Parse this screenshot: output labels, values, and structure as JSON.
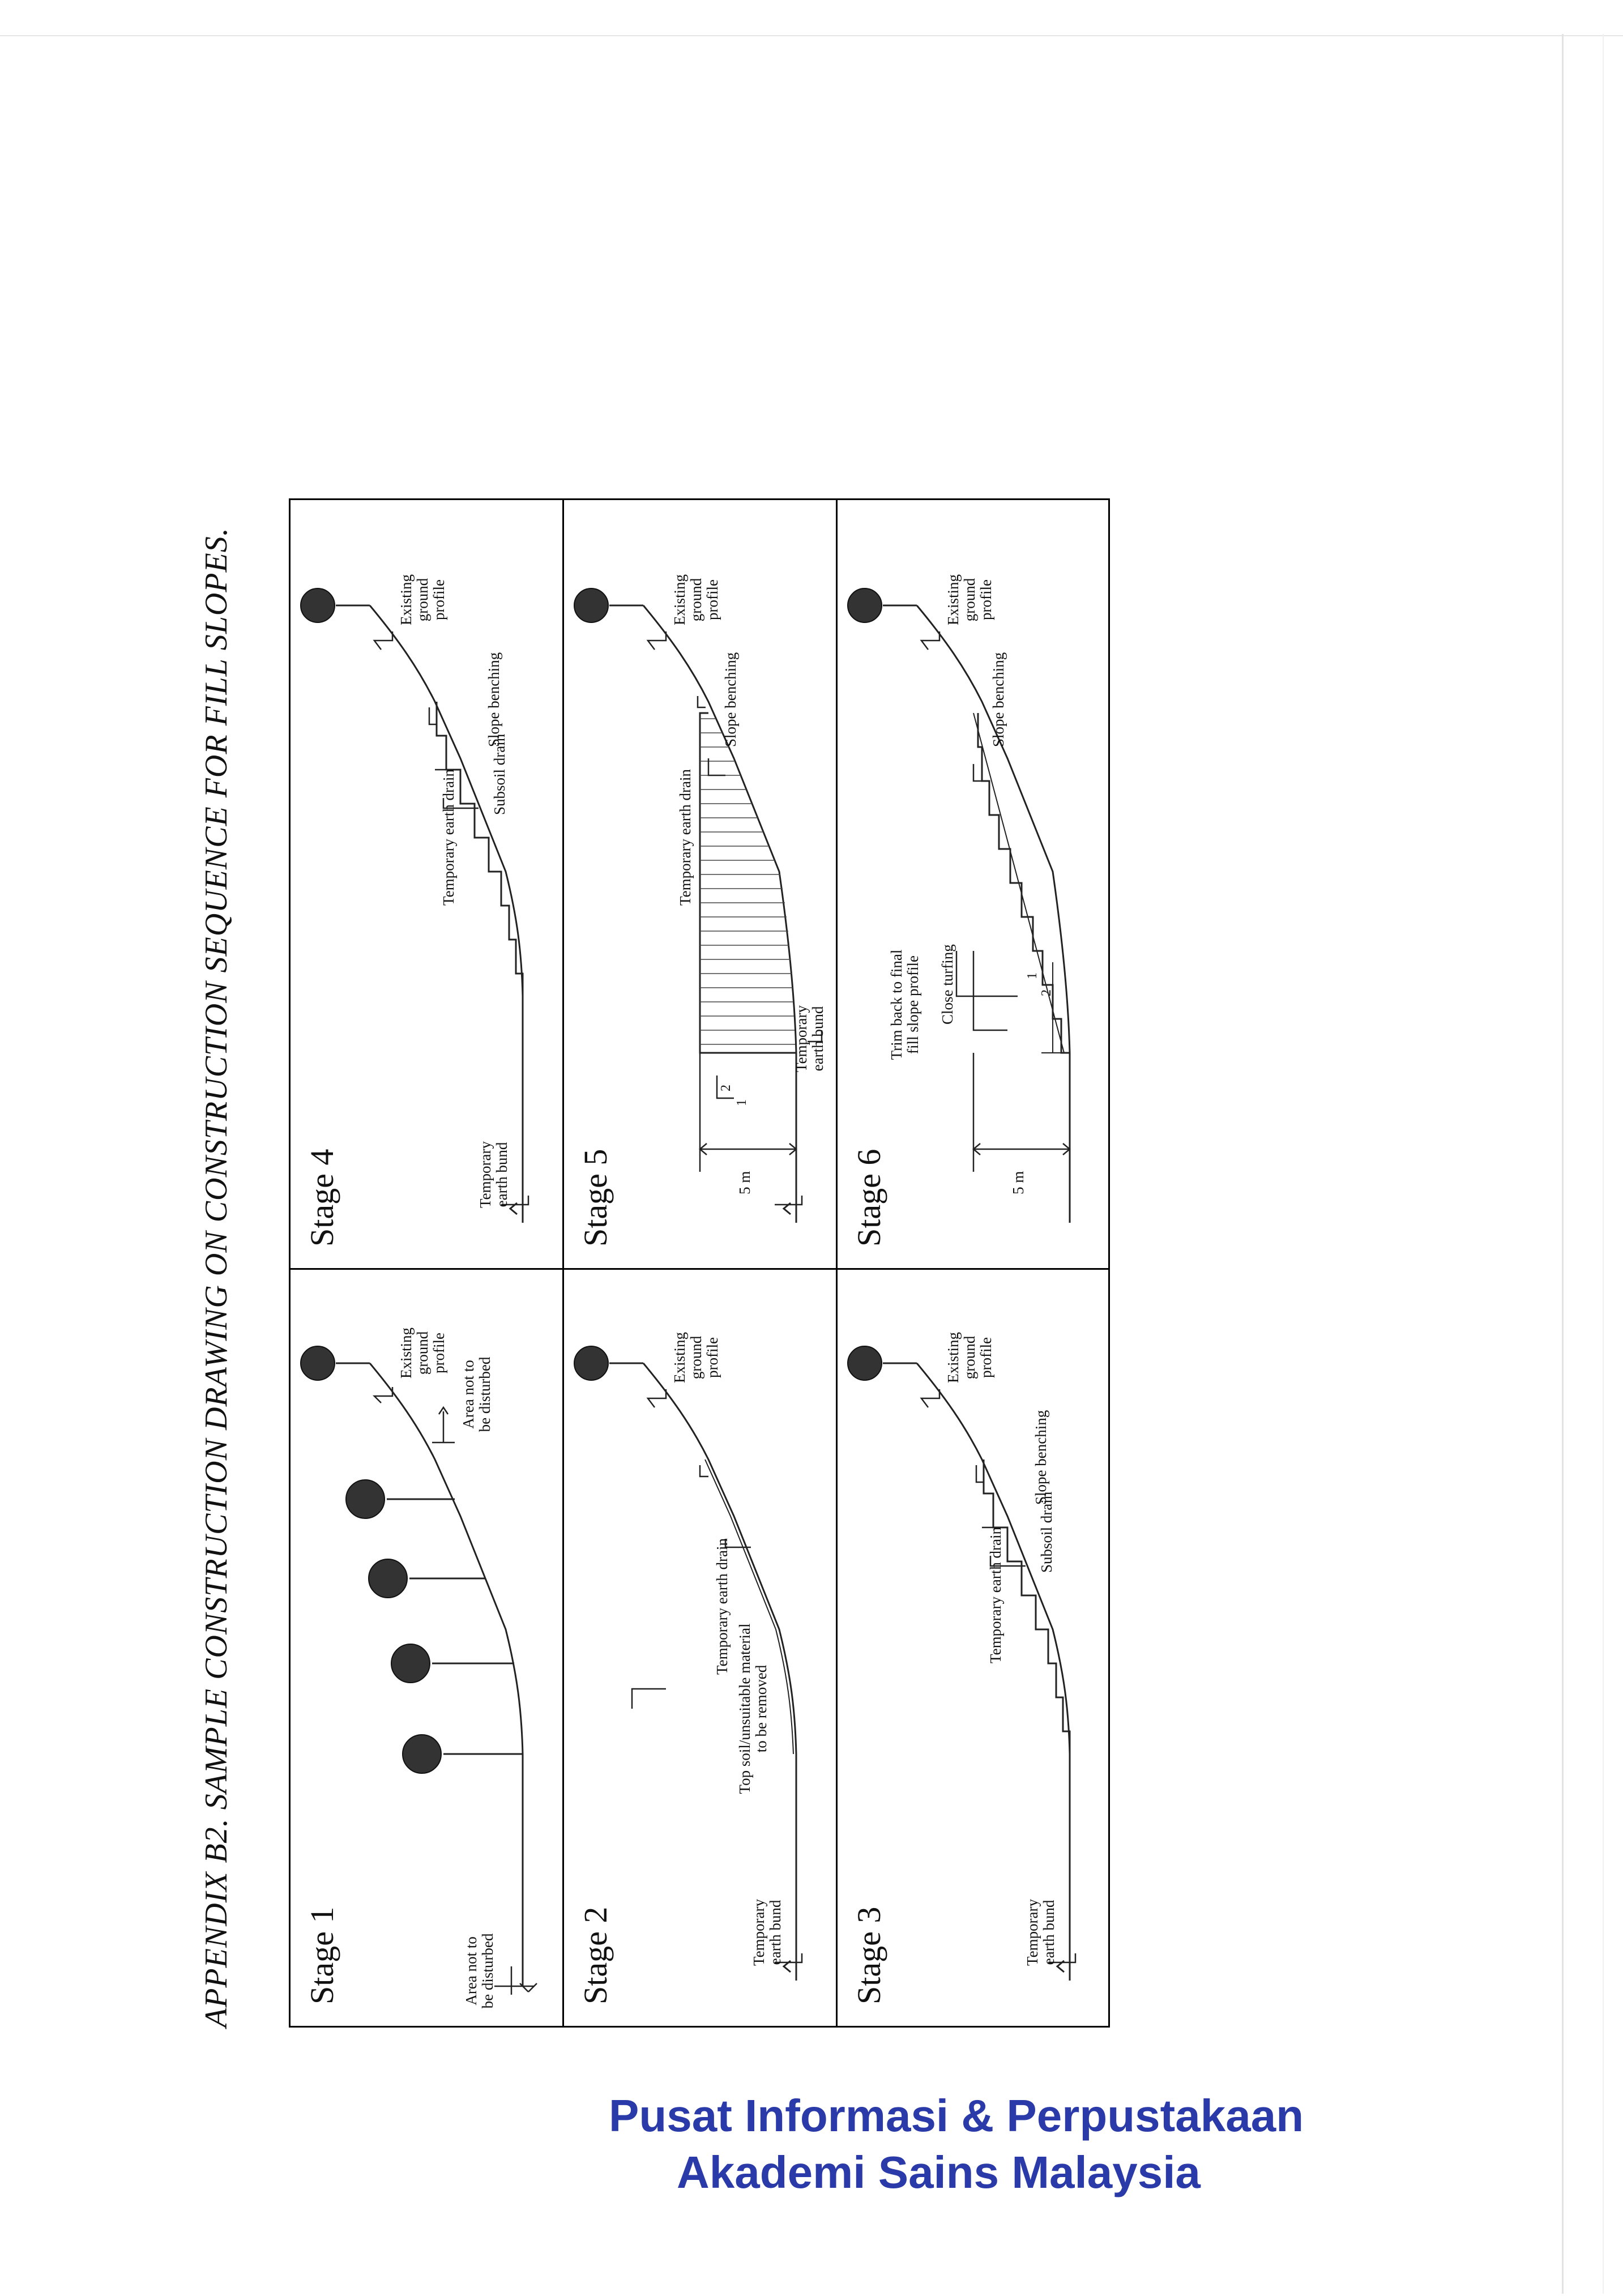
{
  "appendix_title": "APPENDIX B2. SAMPLE CONSTRUCTION DRAWING ON CONSTRUCTION SEQUENCE FOR FILL SLOPES.",
  "stages": {
    "s1": {
      "title": "Stage 1",
      "labels": {
        "area_left": "Area not to\nbe disturbed",
        "area_right": "Area not to\nbe disturbed",
        "existing_ground": "Existing\nground\nprofile"
      }
    },
    "s2": {
      "title": "Stage 2",
      "labels": {
        "earth_bund": "Temporary\nearth bund",
        "topsoil": "Top soil/unsuitable material\nto be removed",
        "earth_drain": "Temporary earth drain",
        "existing_ground": "Existing\nground\nprofile"
      }
    },
    "s3": {
      "title": "Stage 3",
      "labels": {
        "earth_bund": "Temporary\nearth bund",
        "earth_drain": "Temporary earth drain",
        "subsoil_drain": "Subsoil drain",
        "slope_benching": "Slope benching",
        "existing_ground": "Existing\nground\nprofile"
      }
    },
    "s4": {
      "title": "Stage 4",
      "labels": {
        "earth_bund": "Temporary\nearth bund",
        "earth_drain": "Temporary earth drain",
        "subsoil_drain": "Subsoil drain",
        "slope_benching": "Slope benching",
        "existing_ground": "Existing\nground\nprofile"
      }
    },
    "s5": {
      "title": "Stage 5",
      "labels": {
        "height": "5 m",
        "ratio_v": "1",
        "ratio_h": "2",
        "earth_bund": "Temporary\nearth bund",
        "earth_drain": "Temporary earth drain",
        "slope_benching": "Slope benching",
        "existing_ground": "Existing\nground\nprofile"
      }
    },
    "s6": {
      "title": "Stage 6",
      "labels": {
        "height": "5 m",
        "close_turfing": "Close turfing",
        "trim_back": "Trim back to final\nfill slope profile",
        "ratio_v": "1",
        "ratio_h": "2",
        "slope_benching": "Slope benching",
        "existing_ground": "Existing\nground\nprofile"
      }
    }
  },
  "stamp": {
    "line1": "Pusat Informasi & Perpustakaan",
    "line2": "Akademi Sains Malaysia"
  }
}
